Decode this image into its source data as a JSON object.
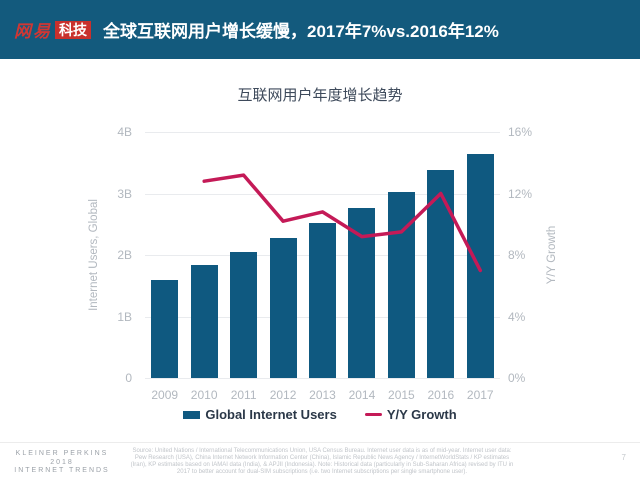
{
  "header": {
    "logo_brand": "网易",
    "logo_suffix": "科技",
    "title": "全球互联网用户增长缓慢，2017年7%vs.2016年12%"
  },
  "chart": {
    "title": "互联网用户年度增长趋势",
    "left_axis": {
      "title": "Internet Users, Global",
      "ticks": [
        "4B",
        "3B",
        "2B",
        "1B",
        "0"
      ]
    },
    "right_axis": {
      "title": "Y/Y Growth",
      "ticks": [
        "16%",
        "12%",
        "8%",
        "4%",
        "0%"
      ]
    },
    "legend": [
      {
        "label": "Global Internet Users",
        "type": "bar"
      },
      {
        "label": "Y/Y Growth",
        "type": "line"
      }
    ]
  },
  "chart_data": {
    "type": "bar",
    "categories": [
      "2009",
      "2010",
      "2011",
      "2012",
      "2013",
      "2014",
      "2015",
      "2016",
      "2017"
    ],
    "series": [
      {
        "name": "Global Internet Users",
        "type": "bar",
        "axis": "left",
        "unit": "B",
        "color": "#0f5980",
        "values": [
          1.59,
          1.83,
          2.05,
          2.28,
          2.52,
          2.76,
          3.02,
          3.39,
          3.65
        ]
      },
      {
        "name": "Y/Y Growth",
        "type": "line",
        "axis": "right",
        "unit": "%",
        "color": "#c41a57",
        "values": [
          null,
          12.8,
          13.2,
          10.2,
          10.8,
          9.2,
          9.5,
          12,
          7
        ]
      }
    ],
    "title": "互联网用户年度增长趋势",
    "xlabel": "",
    "ylabel_left": "Internet Users, Global",
    "ylabel_right": "Y/Y Growth",
    "ylim_left": [
      0,
      4
    ],
    "ylim_right": [
      0,
      16
    ],
    "grid": true,
    "legend_position": "bottom"
  },
  "footer": {
    "brand_lines": [
      "KLEINER PERKINS",
      "2018",
      "INTERNET TRENDS"
    ],
    "source": "Source: United Nations / International Telecommunications Union, USA Census Bureau. Internet user data is as of mid-year. Internet user data: Pew Research (USA), China Internet Network Information Center (China), Islamic Republic News Agency / InternetWorldStats / KP estimates (Iran), KP estimates based on IAMAI data (India), & APJII (Indonesia). Note: Historical data (particularly in Sub-Saharan Africa) revised by ITU in 2017 to better account for dual-SIM subscriptions (i.e. two Internet subscriptions per single smartphone user).",
    "page_number": "7"
  }
}
